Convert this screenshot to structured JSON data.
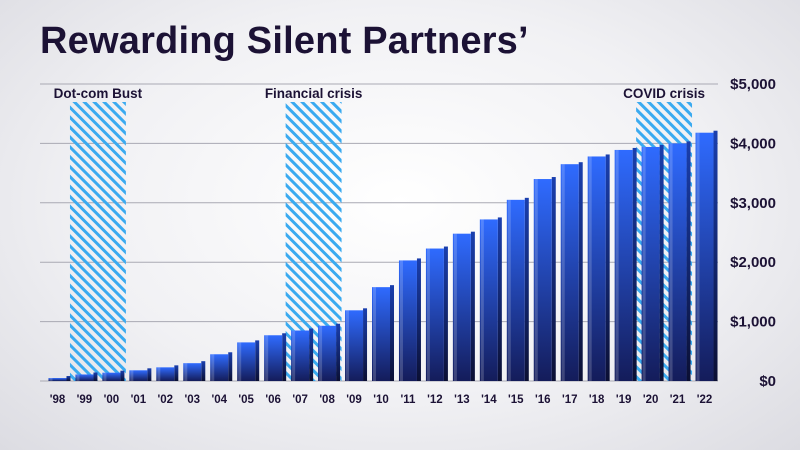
{
  "title": "Rewarding Silent Partners’",
  "chart_data": {
    "type": "bar",
    "categories": [
      "'98",
      "'99",
      "'00",
      "'01",
      "'02",
      "'03",
      "'04",
      "'05",
      "'06",
      "'07",
      "'08",
      "'09",
      "'10",
      "'11",
      "'12",
      "'13",
      "'14",
      "'15",
      "'16",
      "'17",
      "'18",
      "'19",
      "'20",
      "'21",
      "'22"
    ],
    "values": [
      50,
      110,
      140,
      180,
      230,
      300,
      450,
      650,
      770,
      850,
      930,
      1190,
      1580,
      2030,
      2230,
      2480,
      2720,
      3050,
      3400,
      3650,
      3780,
      3890,
      3940,
      4000,
      4180
    ],
    "yticks": [
      "$0",
      "$1,000",
      "$2,000",
      "$3,000",
      "$4,000",
      "$5,000"
    ],
    "ylim": [
      0,
      5000
    ],
    "grid": true,
    "shaded_periods": [
      {
        "label": "Dot-com Bust",
        "start": "'99",
        "end": "'00"
      },
      {
        "label": "Financial crisis",
        "start": "'07",
        "end": "'08"
      },
      {
        "label": "COVID crisis",
        "start": "'20",
        "end": "'21"
      }
    ],
    "colors": {
      "bar_top": "#2f6bff",
      "bar_bottom": "#141c5a",
      "hatch": "#3aaaf0",
      "text": "#1c1235",
      "grid": "#a9a9b3"
    }
  }
}
